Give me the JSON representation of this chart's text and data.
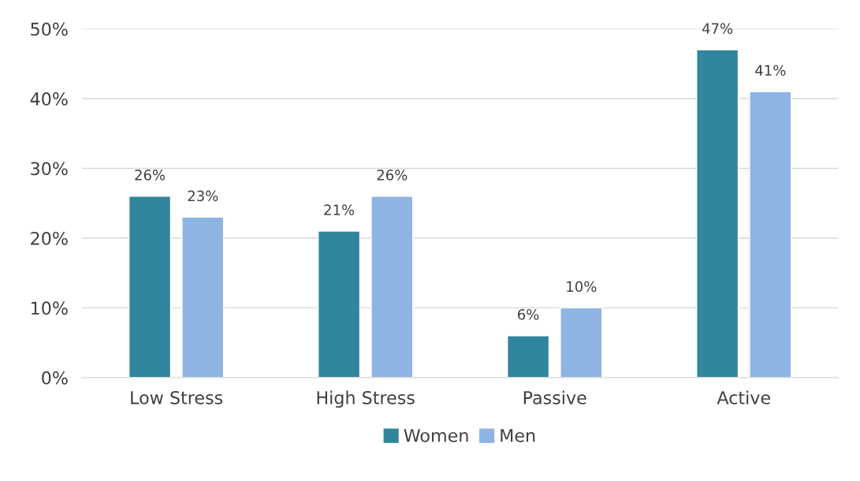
{
  "chart_data": {
    "type": "bar",
    "categories": [
      "Low Stress",
      "High Stress",
      "Passive",
      "Active"
    ],
    "series": [
      {
        "name": "Women",
        "color": "#31859c",
        "values": [
          26,
          21,
          6,
          47
        ],
        "value_labels": [
          "26%",
          "21%",
          "6%",
          "47%"
        ]
      },
      {
        "name": "Men",
        "color": "#8eb4e3",
        "values": [
          23,
          26,
          10,
          41
        ],
        "value_labels": [
          "23%",
          "26%",
          "10%",
          "41%"
        ]
      }
    ],
    "ylim": [
      0,
      50
    ],
    "yticks": [
      {
        "value": 0,
        "label": "0%"
      },
      {
        "value": 10,
        "label": "10%"
      },
      {
        "value": 20,
        "label": "20%"
      },
      {
        "value": 30,
        "label": "30%"
      },
      {
        "value": 40,
        "label": "40%"
      },
      {
        "value": 50,
        "label": "50%"
      }
    ],
    "grid": "y",
    "legend": "bottom"
  }
}
